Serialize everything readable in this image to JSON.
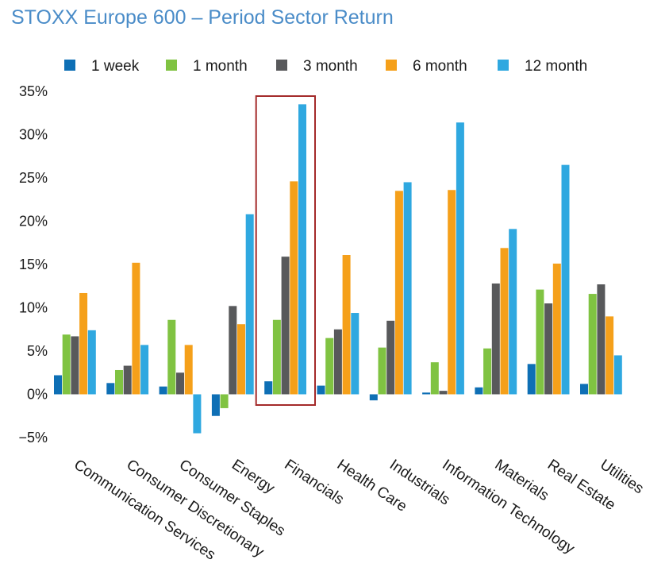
{
  "chart_data": {
    "type": "bar",
    "title": "STOXX Europe 600 – Period Sector Return",
    "xlabel": "",
    "ylabel": "",
    "ylim": [
      -5,
      35
    ],
    "yticks": [
      -5,
      0,
      5,
      10,
      15,
      20,
      25,
      30,
      35
    ],
    "ytick_labels": [
      "−5%",
      "0%",
      "5%",
      "10%",
      "15%",
      "20%",
      "25%",
      "30%",
      "35%"
    ],
    "legend_position": "top",
    "grid": false,
    "categories": [
      "Communication Services",
      "Consumer Discretionary",
      "Consumer Staples",
      "Energy",
      "Financials",
      "Health Care",
      "Industrials",
      "Information Technology",
      "Materials",
      "Real Estate",
      "Utilities"
    ],
    "highlighted_category": "Financials",
    "highlight_color": "#a42a2a",
    "series": [
      {
        "name": "1 week",
        "color": "#0e6fb5",
        "values": [
          2.2,
          1.3,
          0.9,
          -2.5,
          1.5,
          1.0,
          -0.7,
          0.2,
          0.8,
          3.5,
          1.2
        ]
      },
      {
        "name": "1 month",
        "color": "#80c342",
        "values": [
          6.9,
          2.8,
          8.6,
          -1.6,
          8.6,
          6.5,
          5.4,
          3.7,
          5.3,
          12.1,
          11.6
        ]
      },
      {
        "name": "3 month",
        "color": "#58595b",
        "values": [
          6.7,
          3.3,
          2.5,
          10.2,
          15.9,
          7.5,
          8.5,
          0.4,
          12.8,
          10.5,
          12.7
        ]
      },
      {
        "name": "6 month",
        "color": "#f5a01a",
        "values": [
          11.7,
          15.2,
          5.7,
          8.1,
          24.6,
          16.1,
          23.5,
          23.6,
          16.9,
          15.1,
          9.0
        ]
      },
      {
        "name": "12 month",
        "color": "#2fa8e0",
        "values": [
          7.4,
          5.7,
          -4.5,
          20.8,
          33.5,
          9.4,
          24.5,
          31.4,
          19.1,
          26.5,
          4.5
        ]
      }
    ]
  }
}
